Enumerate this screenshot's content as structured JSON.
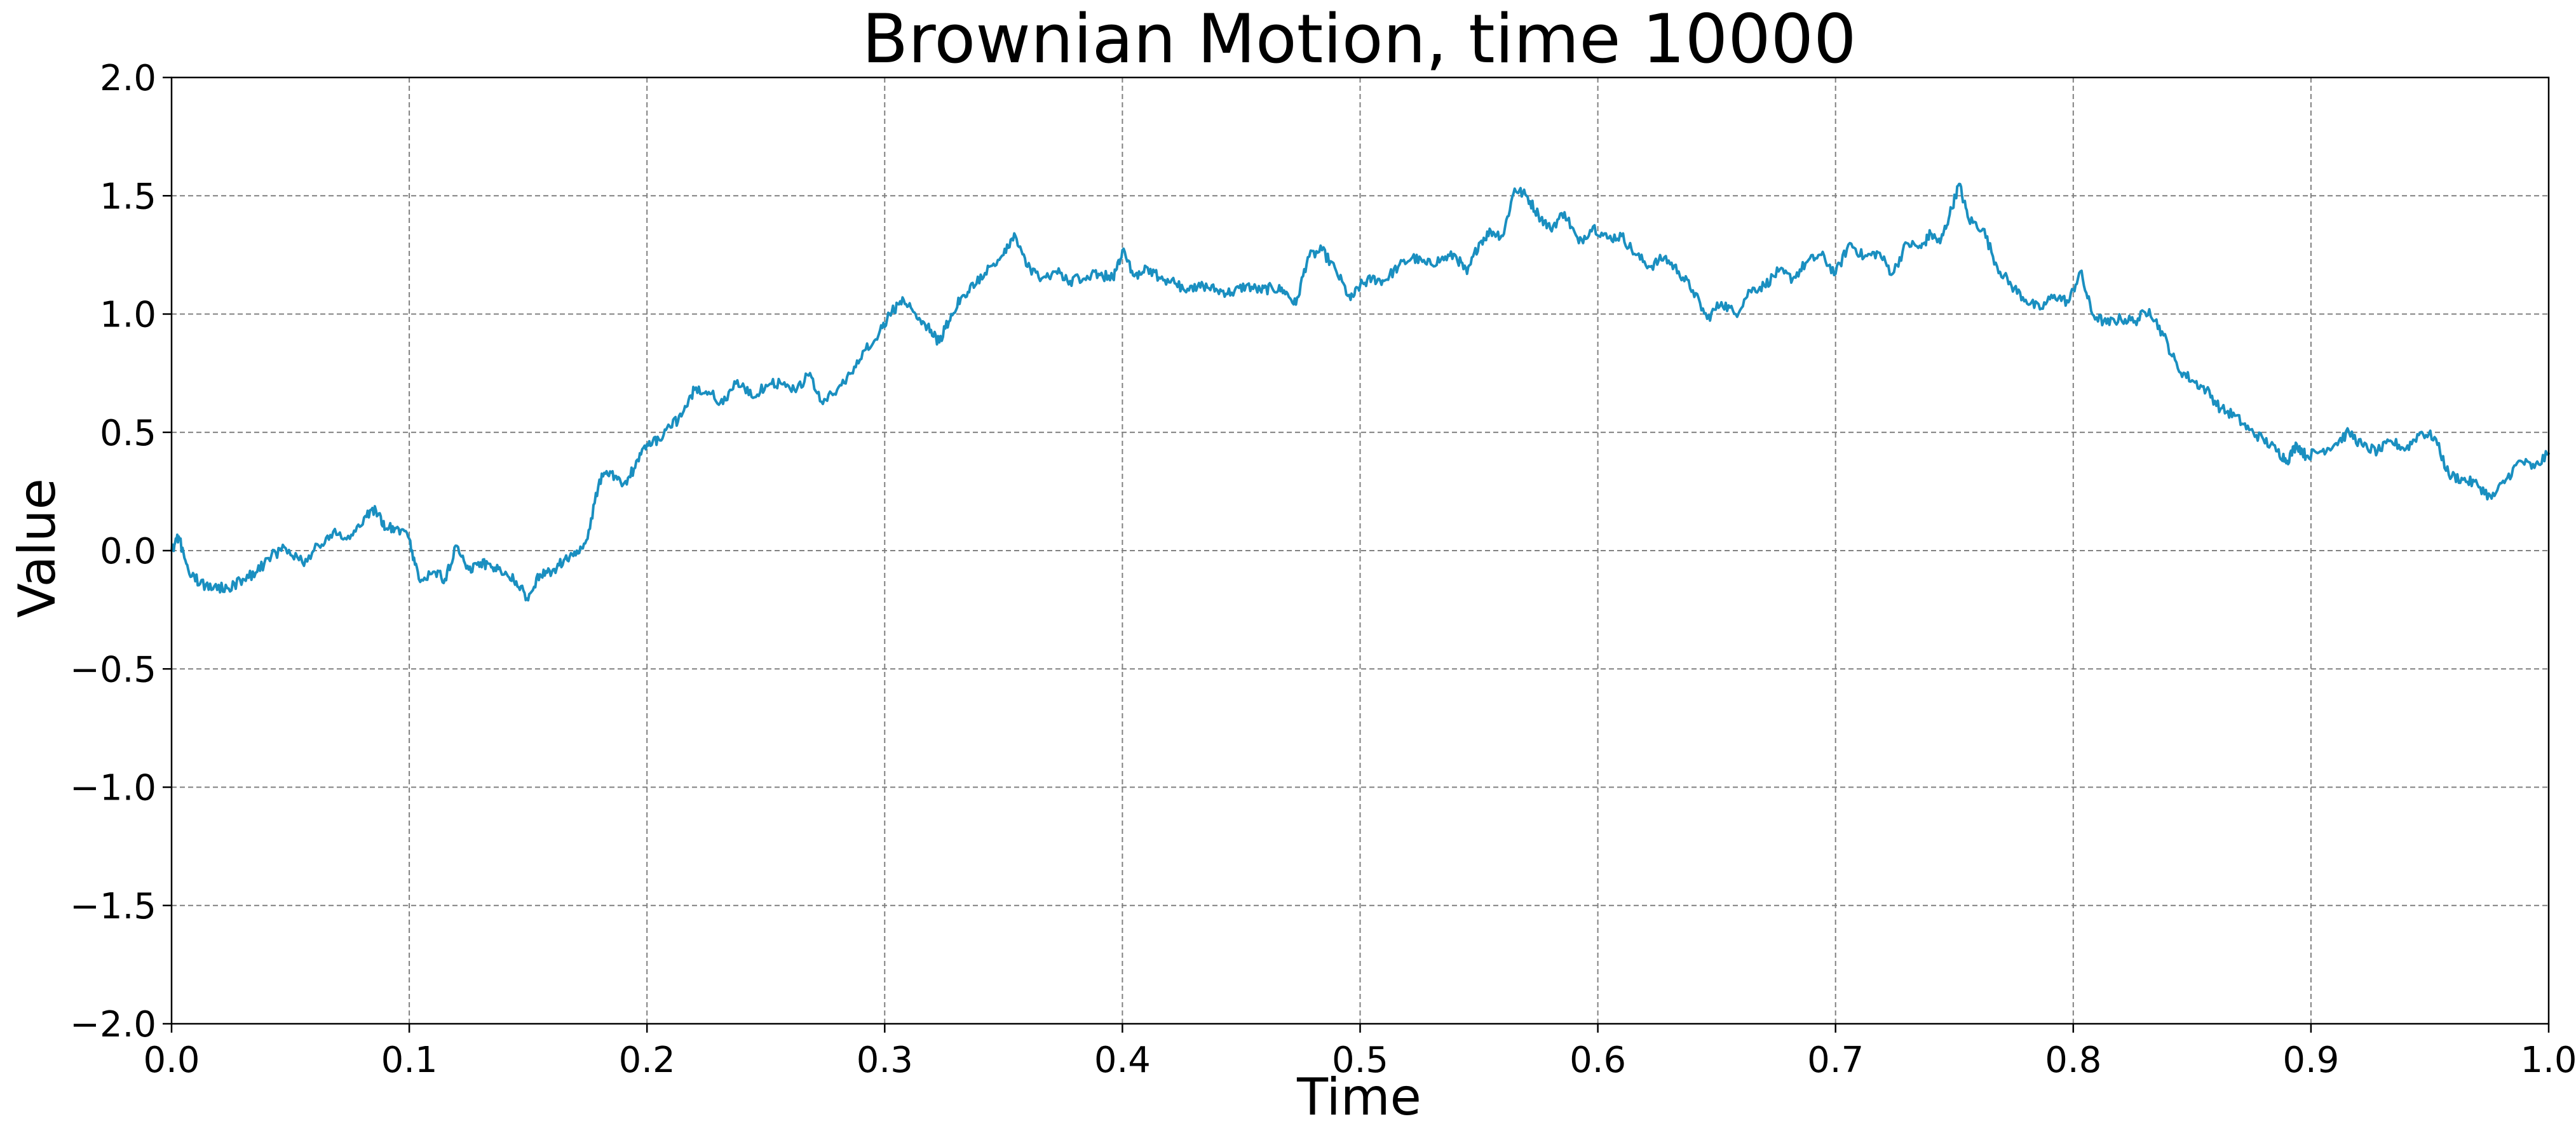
{
  "chart_data": {
    "type": "line",
    "title": "Brownian Motion, time 10000",
    "xlabel": "Time",
    "ylabel": "Value",
    "xlim": [
      0.0,
      1.0
    ],
    "ylim": [
      -2.0,
      2.0
    ],
    "x_ticks": [
      "0.0",
      "0.1",
      "0.2",
      "0.3",
      "0.4",
      "0.5",
      "0.6",
      "0.7",
      "0.8",
      "0.9",
      "1.0"
    ],
    "y_ticks": [
      "−2.0",
      "−1.5",
      "−1.0",
      "−0.5",
      "0.0",
      "0.5",
      "1.0",
      "1.5",
      "2.0"
    ],
    "grid": true,
    "grid_style": "dashed",
    "legend": "none",
    "line_color": "#1a8fc0",
    "n_steps": 10000,
    "series": [
      {
        "x": [
          0.0,
          0.003,
          0.007,
          0.012,
          0.018,
          0.024,
          0.03,
          0.036,
          0.042,
          0.048,
          0.055,
          0.062,
          0.068,
          0.075,
          0.081,
          0.086,
          0.09,
          0.095,
          0.1,
          0.104,
          0.11,
          0.115,
          0.12,
          0.125,
          0.13,
          0.135,
          0.14,
          0.145,
          0.15,
          0.155,
          0.16,
          0.165,
          0.17,
          0.175,
          0.18,
          0.185,
          0.19,
          0.195,
          0.2,
          0.205,
          0.21,
          0.215,
          0.22,
          0.226,
          0.232,
          0.238,
          0.244,
          0.25,
          0.256,
          0.262,
          0.268,
          0.274,
          0.28,
          0.286,
          0.292,
          0.298,
          0.303,
          0.308,
          0.313,
          0.318,
          0.323,
          0.328,
          0.333,
          0.338,
          0.344,
          0.35,
          0.355,
          0.36,
          0.366,
          0.372,
          0.378,
          0.384,
          0.39,
          0.396,
          0.4,
          0.405,
          0.41,
          0.416,
          0.422,
          0.428,
          0.434,
          0.44,
          0.446,
          0.452,
          0.458,
          0.463,
          0.468,
          0.473,
          0.478,
          0.484,
          0.49,
          0.496,
          0.5,
          0.505,
          0.51,
          0.516,
          0.522,
          0.528,
          0.534,
          0.54,
          0.545,
          0.55,
          0.555,
          0.56,
          0.565,
          0.57,
          0.575,
          0.58,
          0.586,
          0.592,
          0.598,
          0.604,
          0.61,
          0.616,
          0.622,
          0.628,
          0.634,
          0.64,
          0.646,
          0.652,
          0.658,
          0.664,
          0.67,
          0.676,
          0.682,
          0.688,
          0.694,
          0.7,
          0.706,
          0.712,
          0.718,
          0.724,
          0.73,
          0.736,
          0.74,
          0.744,
          0.748,
          0.752,
          0.756,
          0.762,
          0.768,
          0.774,
          0.78,
          0.786,
          0.792,
          0.798,
          0.803,
          0.808,
          0.814,
          0.82,
          0.826,
          0.832,
          0.838,
          0.844,
          0.85,
          0.856,
          0.862,
          0.868,
          0.874,
          0.88,
          0.886,
          0.89,
          0.894,
          0.898,
          0.904,
          0.91,
          0.916,
          0.922,
          0.928,
          0.934,
          0.94,
          0.946,
          0.952,
          0.958,
          0.964,
          0.97,
          0.976,
          0.982,
          0.988,
          0.994,
          1.0
        ],
        "values": [
          0.0,
          0.06,
          -0.08,
          -0.14,
          -0.15,
          -0.16,
          -0.12,
          -0.09,
          -0.02,
          0.01,
          -0.05,
          0.02,
          0.08,
          0.05,
          0.14,
          0.17,
          0.09,
          0.1,
          0.05,
          -0.12,
          -0.09,
          -0.12,
          0.02,
          -0.08,
          -0.05,
          -0.07,
          -0.1,
          -0.13,
          -0.21,
          -0.1,
          -0.09,
          -0.04,
          -0.02,
          0.05,
          0.3,
          0.33,
          0.28,
          0.35,
          0.45,
          0.47,
          0.52,
          0.58,
          0.68,
          0.67,
          0.62,
          0.72,
          0.65,
          0.7,
          0.71,
          0.68,
          0.74,
          0.62,
          0.68,
          0.75,
          0.85,
          0.93,
          1.01,
          1.06,
          1.0,
          0.95,
          0.88,
          1.0,
          1.08,
          1.12,
          1.2,
          1.25,
          1.33,
          1.2,
          1.15,
          1.18,
          1.14,
          1.15,
          1.17,
          1.15,
          1.27,
          1.16,
          1.2,
          1.15,
          1.13,
          1.1,
          1.12,
          1.1,
          1.09,
          1.12,
          1.1,
          1.11,
          1.1,
          1.04,
          1.24,
          1.27,
          1.18,
          1.06,
          1.12,
          1.15,
          1.14,
          1.2,
          1.24,
          1.21,
          1.23,
          1.25,
          1.17,
          1.3,
          1.35,
          1.33,
          1.53,
          1.5,
          1.42,
          1.36,
          1.43,
          1.3,
          1.37,
          1.32,
          1.33,
          1.25,
          1.2,
          1.24,
          1.18,
          1.1,
          0.98,
          1.05,
          1.0,
          1.1,
          1.12,
          1.18,
          1.15,
          1.22,
          1.25,
          1.17,
          1.3,
          1.24,
          1.26,
          1.17,
          1.3,
          1.28,
          1.34,
          1.3,
          1.42,
          1.55,
          1.4,
          1.36,
          1.2,
          1.12,
          1.06,
          1.02,
          1.08,
          1.05,
          1.18,
          1.0,
          0.96,
          0.98,
          0.97,
          1.02,
          0.91,
          0.77,
          0.72,
          0.68,
          0.6,
          0.57,
          0.51,
          0.47,
          0.42,
          0.38,
          0.45,
          0.4,
          0.42,
          0.45,
          0.5,
          0.44,
          0.42,
          0.46,
          0.43,
          0.5,
          0.48,
          0.32,
          0.3,
          0.28,
          0.22,
          0.3,
          0.38,
          0.35,
          0.41
        ]
      }
    ]
  }
}
